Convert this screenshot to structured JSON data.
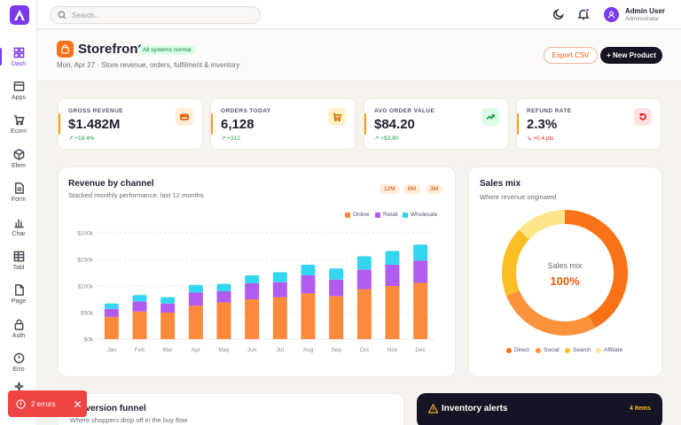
{
  "sidebar": {
    "items": [
      {
        "label": "Dash",
        "icon": "grid-icon"
      },
      {
        "label": "Apps",
        "icon": "box-icon"
      },
      {
        "label": "Ecom",
        "icon": "cart-icon"
      },
      {
        "label": "Elem",
        "icon": "cube-icon"
      },
      {
        "label": "Form",
        "icon": "file-icon"
      },
      {
        "label": "Char",
        "icon": "bar-chart-icon"
      },
      {
        "label": "Tabl",
        "icon": "table-icon"
      },
      {
        "label": "Page",
        "icon": "page-icon"
      },
      {
        "label": "Auth",
        "icon": "lock-icon"
      },
      {
        "label": "Erro",
        "icon": "alert-icon"
      }
    ]
  },
  "topbar": {
    "search_placeholder": "Search...",
    "user_name": "Admin User",
    "user_role": "Administrator"
  },
  "header": {
    "title": "Storefront",
    "status_badge": "All systems normal",
    "subtitle": "Mon, Apr 27 · Store revenue, orders, fulfilment & inventory",
    "export_label": "Export CSV",
    "new_product_label": "+ New Product"
  },
  "kpis": [
    {
      "label": "GROSS REVENUE",
      "value": "$1.482M",
      "delta": "↗ +18.4%",
      "delta_color": "#16a34a",
      "icon": "wallet-icon",
      "icon_bg": "#ffedd5",
      "icon_color": "#ea580c"
    },
    {
      "label": "ORDERS TODAY",
      "value": "6,128",
      "delta": "↗ +312",
      "delta_color": "#16a34a",
      "icon": "cart-icon",
      "icon_bg": "#fef3c7",
      "icon_color": "#d97706"
    },
    {
      "label": "AVG ORDER VALUE",
      "value": "$84.20",
      "delta": "↗ +$3.80",
      "delta_color": "#16a34a",
      "icon": "trend-up-icon",
      "icon_bg": "#dcfce7",
      "icon_color": "#16a34a"
    },
    {
      "label": "REFUND RATE",
      "value": "2.3%",
      "delta": "↘ +0.4 pts",
      "delta_color": "#dc2626",
      "icon": "refresh-icon",
      "icon_bg": "#fee2e2",
      "icon_color": "#dc2626"
    }
  ],
  "revenue_card": {
    "title": "Revenue by channel",
    "subtitle": "Stacked monthly performance, last 12 months",
    "ranges": [
      "12M",
      "6M",
      "3M"
    ]
  },
  "sales_mix_card": {
    "title": "Sales mix",
    "subtitle": "Where revenue originated",
    "center_label": "Sales mix",
    "center_value": "100%"
  },
  "funnel_card": {
    "title": "Conversion funnel",
    "subtitle": "Where shoppers drop off in the buy flow"
  },
  "inventory_card": {
    "title": "Inventory alerts",
    "count": "4 items"
  },
  "toast": {
    "text": "2 errors"
  },
  "colors": {
    "accent": "#7c3aed",
    "online": "#fb8a3c",
    "retail": "#b05cf0",
    "wholesale": "#34d5ee",
    "direct": "#f97316",
    "social": "#fb923c",
    "search": "#fbbf24",
    "affiliate": "#fde68a"
  },
  "chart_data": [
    {
      "type": "bar",
      "stacked": true,
      "categories": [
        "Jan",
        "Feb",
        "Mar",
        "Apr",
        "May",
        "Jun",
        "Jul",
        "Aug",
        "Sep",
        "Oct",
        "Nov",
        "Dec"
      ],
      "series": [
        {
          "name": "Online",
          "values": [
            42,
            52,
            50,
            63,
            69,
            75,
            79,
            86,
            81,
            94,
            100,
            106
          ]
        },
        {
          "name": "Retail",
          "values": [
            15,
            19,
            17,
            25,
            21,
            30,
            28,
            34,
            31,
            37,
            40,
            42
          ]
        },
        {
          "name": "Wholesale",
          "values": [
            10,
            12,
            12,
            14,
            14,
            15,
            19,
            20,
            21,
            25,
            26,
            30
          ]
        }
      ],
      "yticks": [
        "$0k",
        "$50k",
        "$100k",
        "$150k",
        "$200k"
      ],
      "ylim": [
        0,
        200
      ],
      "legend": "top-right",
      "grid": true
    },
    {
      "type": "pie",
      "donut": true,
      "labels": [
        "Direct",
        "Social",
        "Search",
        "Affiliate"
      ],
      "values": [
        42,
        27,
        18,
        13
      ],
      "legend": "bottom"
    }
  ]
}
